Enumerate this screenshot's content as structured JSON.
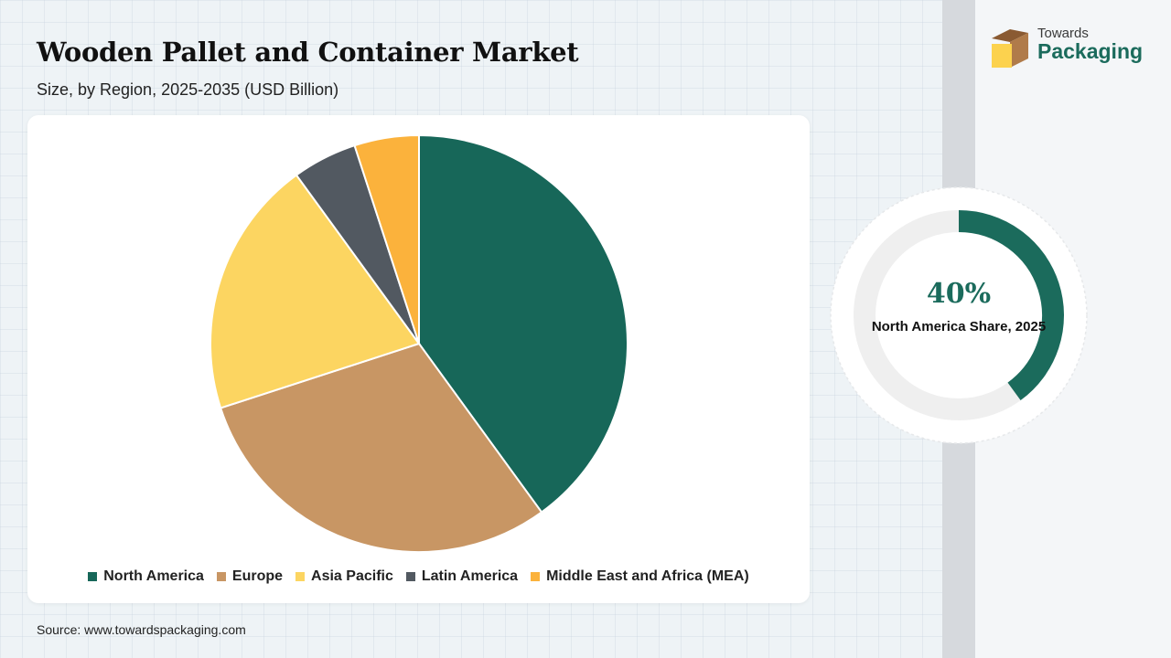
{
  "header": {
    "title": "Wooden Pallet and Container Market",
    "subtitle": "Size, by Region, 2025-2035 (USD Billion)"
  },
  "logo": {
    "line1": "Towards",
    "line2": "Packaging"
  },
  "source": "Source: www.towardspackaging.com",
  "highlight": {
    "value": "40%",
    "caption": "North America Share, 2025",
    "share": 0.4,
    "color": "#1b6b5c",
    "track_color": "#efefef"
  },
  "chart_data": {
    "type": "pie",
    "title": "Wooden Pallet and Container Market",
    "subtitle": "Size, by Region, 2025-2035 (USD Billion)",
    "legend_position": "bottom",
    "categories": [
      "North America",
      "Europe",
      "Asia Pacific",
      "Latin America",
      "Middle East and Africa (MEA)"
    ],
    "values": [
      40,
      30,
      20,
      5,
      5
    ],
    "colors": [
      "#176759",
      "#c89664",
      "#fcd561",
      "#525961",
      "#fbb23c"
    ]
  }
}
